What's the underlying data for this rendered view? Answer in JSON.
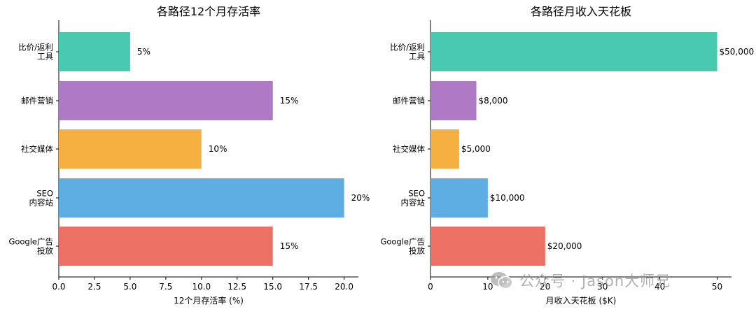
{
  "chart_data": [
    {
      "type": "bar",
      "orientation": "horizontal",
      "title": "各路径12个月存活率",
      "xlabel": "12个月存活率 (%)",
      "ylabel": "",
      "xlim": [
        0,
        21
      ],
      "xticks": [
        "0.0",
        "2.5",
        "5.0",
        "7.5",
        "10.0",
        "12.5",
        "15.0",
        "17.5",
        "20.0"
      ],
      "categories": [
        [
          "比价/返利",
          "工具"
        ],
        [
          "邮件营销"
        ],
        [
          "社交媒体"
        ],
        [
          "SEO",
          "内容站"
        ],
        [
          "Google广告",
          "投放"
        ]
      ],
      "values": [
        5,
        15,
        10,
        20,
        15
      ],
      "data_labels": [
        "5%",
        "15%",
        "10%",
        "20%",
        "15%"
      ],
      "colors": [
        "#48c9b0",
        "#af7ac5",
        "#f5b041",
        "#5dade2",
        "#ec7063"
      ],
      "grid": false
    },
    {
      "type": "bar",
      "orientation": "horizontal",
      "title": "各路径月收入天花板",
      "xlabel": "月收入天花板 ($K)",
      "ylabel": "",
      "xlim": [
        0,
        52.5
      ],
      "xticks": [
        "0",
        "10",
        "20",
        "30",
        "40",
        "50"
      ],
      "categories": [
        [
          "比价/返利",
          "工具"
        ],
        [
          "邮件营销"
        ],
        [
          "社交媒体"
        ],
        [
          "SEO",
          "内容站"
        ],
        [
          "Google广告",
          "投放"
        ]
      ],
      "values": [
        50,
        8,
        5,
        10,
        20
      ],
      "data_labels": [
        "$50,000",
        "$8,000",
        "$5,000",
        "$10,000",
        "$20,000"
      ],
      "colors": [
        "#48c9b0",
        "#af7ac5",
        "#f5b041",
        "#5dade2",
        "#ec7063"
      ],
      "grid": false
    }
  ],
  "watermark": {
    "text": "公众号 · Jason大师兄",
    "icon": "wechat-icon"
  }
}
